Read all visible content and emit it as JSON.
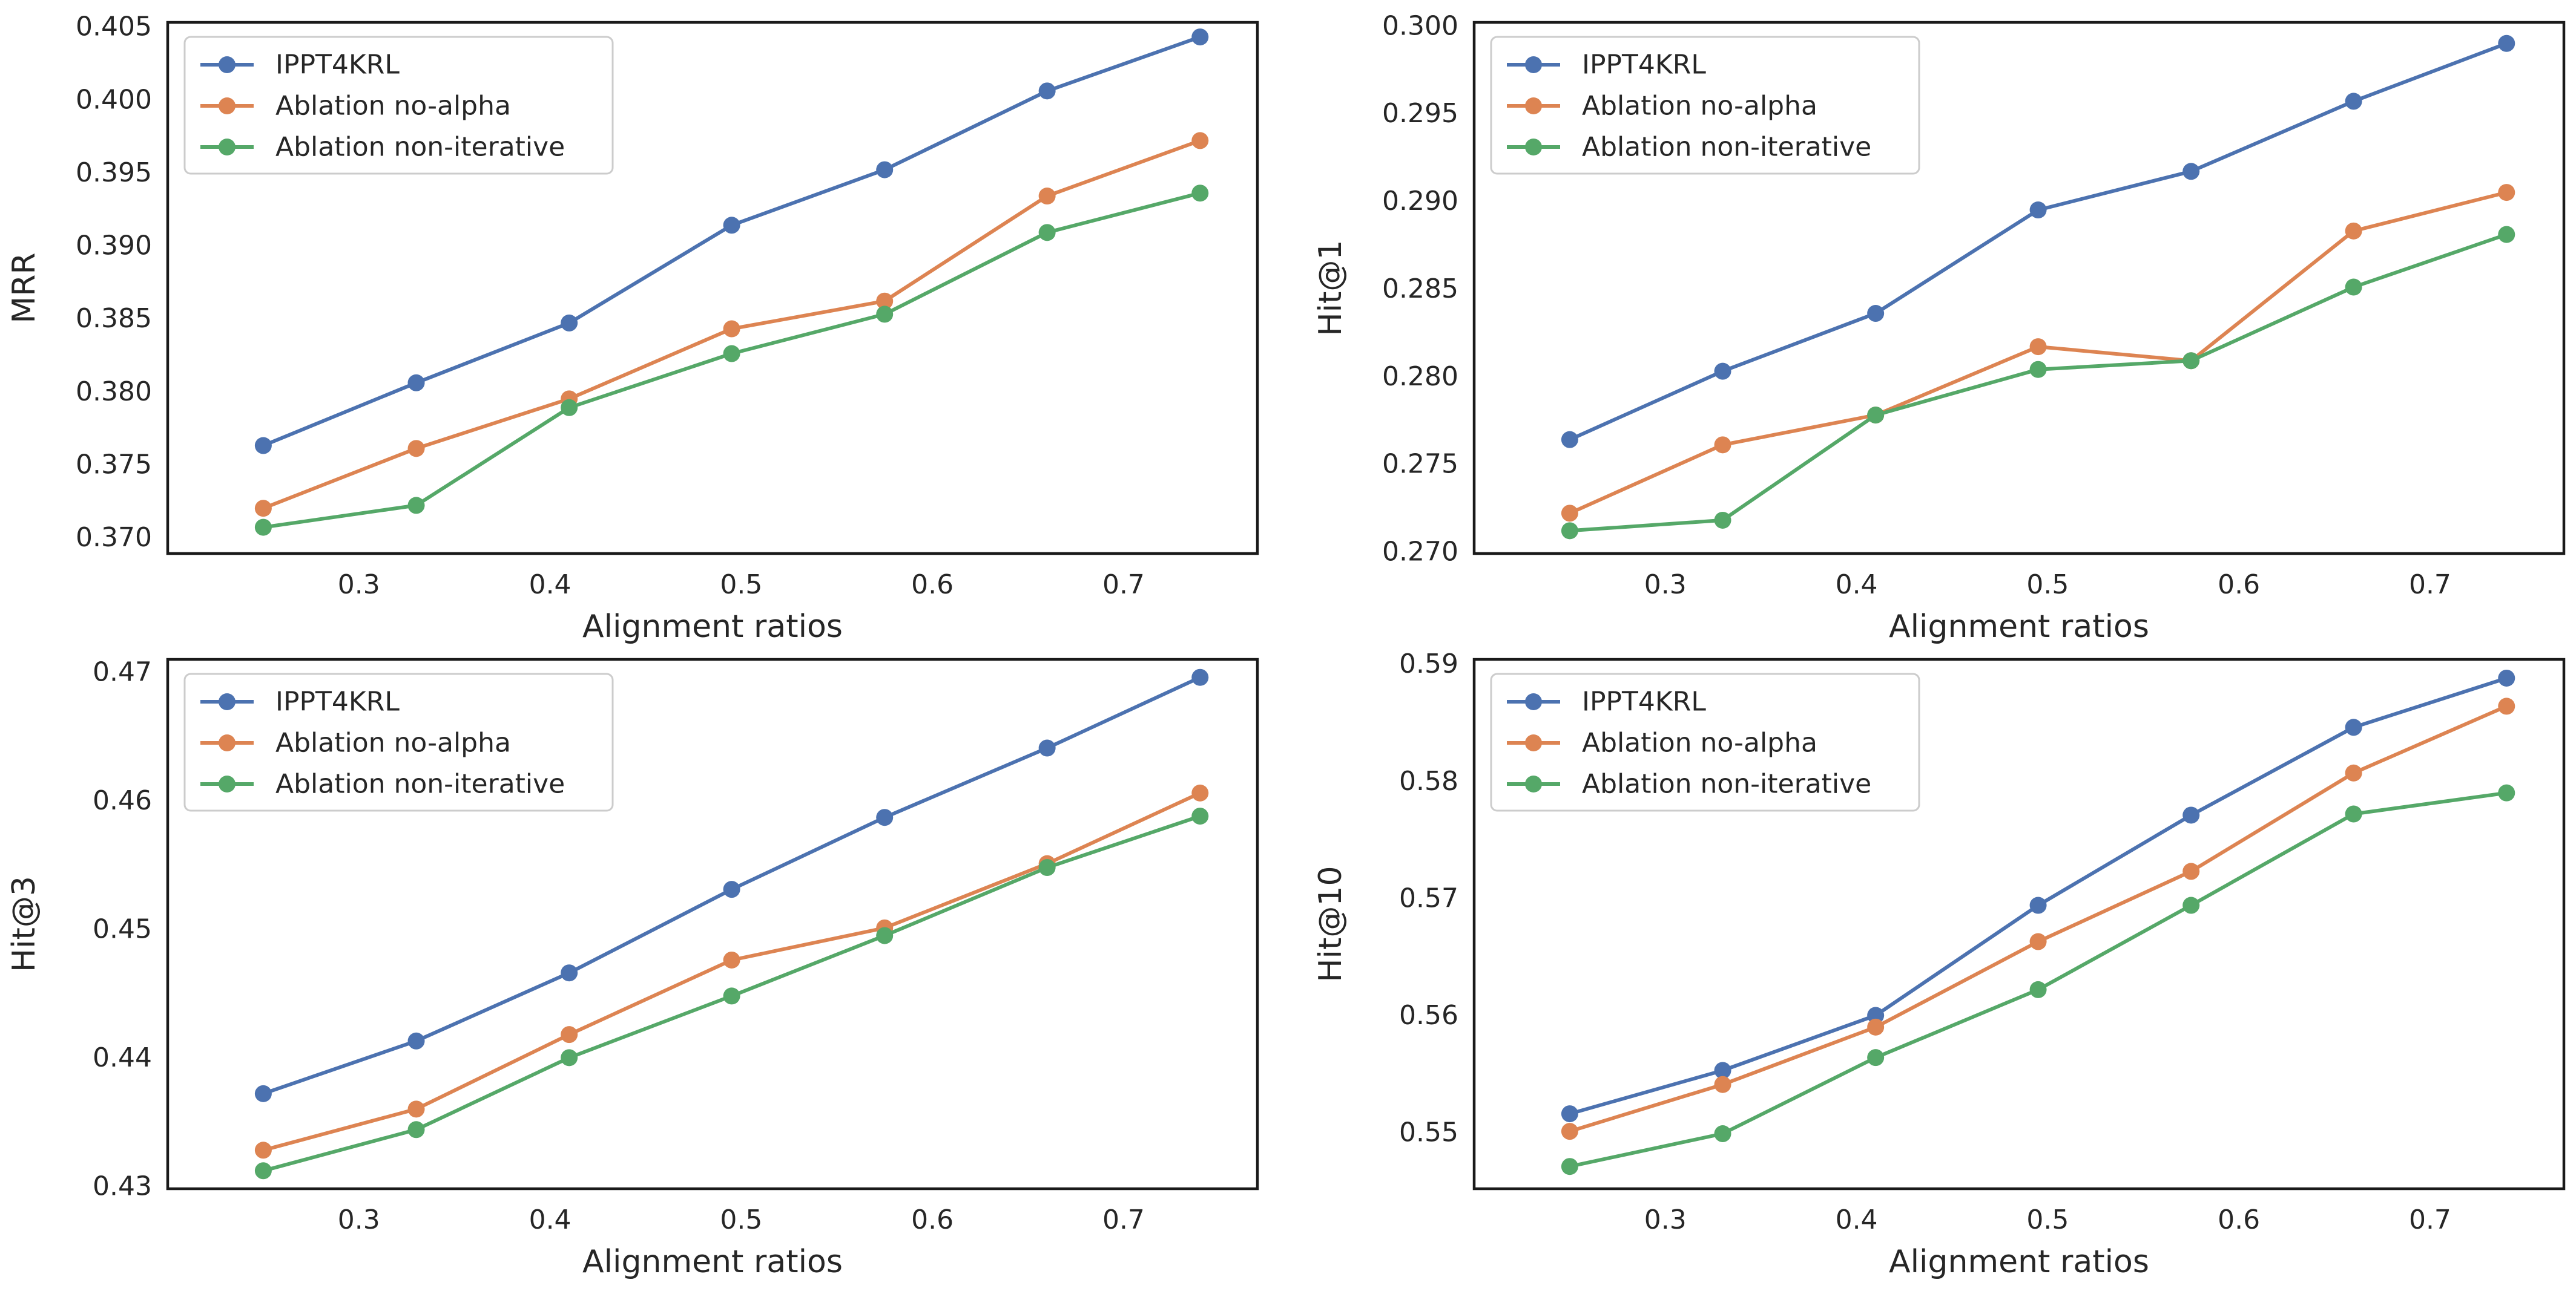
{
  "figure": {
    "background": "#ffffff"
  },
  "series_styles": [
    {
      "name": "IPPT4KRL",
      "color": "#4c72b0"
    },
    {
      "name": "Ablation no-alpha",
      "color": "#dd8452"
    },
    {
      "name": "Ablation non-iterative",
      "color": "#55a868"
    }
  ],
  "chart_data": [
    {
      "type": "line",
      "xlabel": "Alignment ratios",
      "ylabel": "MRR",
      "x": [
        0.25,
        0.33,
        0.41,
        0.495,
        0.575,
        0.66,
        0.74
      ],
      "xlim": [
        0.2,
        0.77
      ],
      "ylim": [
        0.3689,
        0.4053
      ],
      "xticks": [
        0.3,
        0.4,
        0.5,
        0.6,
        0.7
      ],
      "xtick_labels": [
        "0.3",
        "0.4",
        "0.5",
        "0.6",
        "0.7"
      ],
      "yticks": [
        0.37,
        0.375,
        0.38,
        0.385,
        0.39,
        0.395,
        0.4,
        0.405
      ],
      "ytick_labels": [
        "0.370",
        "0.375",
        "0.380",
        "0.385",
        "0.390",
        "0.395",
        "0.400",
        "0.405"
      ],
      "legend_position": "upper-left",
      "series": [
        {
          "name": "IPPT4KRL",
          "values": [
            0.3763,
            0.3806,
            0.3847,
            0.3914,
            0.3952,
            0.4006,
            0.4043
          ]
        },
        {
          "name": "Ablation no-alpha",
          "values": [
            0.372,
            0.3761,
            0.3795,
            0.3843,
            0.3862,
            0.3934,
            0.3972
          ]
        },
        {
          "name": "Ablation non-iterative",
          "values": [
            0.3707,
            0.3722,
            0.3789,
            0.3826,
            0.3853,
            0.3909,
            0.3936
          ]
        }
      ]
    },
    {
      "type": "line",
      "xlabel": "Alignment ratios",
      "ylabel": "Hit@1",
      "x": [
        0.25,
        0.33,
        0.41,
        0.495,
        0.575,
        0.66,
        0.74
      ],
      "xlim": [
        0.2,
        0.77
      ],
      "ylim": [
        0.2699,
        0.3002
      ],
      "xticks": [
        0.3,
        0.4,
        0.5,
        0.6,
        0.7
      ],
      "xtick_labels": [
        "0.3",
        "0.4",
        "0.5",
        "0.6",
        "0.7"
      ],
      "yticks": [
        0.27,
        0.275,
        0.28,
        0.285,
        0.29,
        0.295,
        0.3
      ],
      "ytick_labels": [
        "0.270",
        "0.275",
        "0.280",
        "0.285",
        "0.290",
        "0.295",
        "0.300"
      ],
      "legend_position": "upper-left",
      "series": [
        {
          "name": "IPPT4KRL",
          "values": [
            0.2764,
            0.2803,
            0.2836,
            0.2895,
            0.2917,
            0.2957,
            0.299
          ]
        },
        {
          "name": "Ablation no-alpha",
          "values": [
            0.2722,
            0.2761,
            0.2778,
            0.2817,
            0.2809,
            0.2883,
            0.2905
          ]
        },
        {
          "name": "Ablation non-iterative",
          "values": [
            0.2712,
            0.2718,
            0.2778,
            0.2804,
            0.2809,
            0.2851,
            0.2881
          ]
        }
      ]
    },
    {
      "type": "line",
      "xlabel": "Alignment ratios",
      "ylabel": "Hit@3",
      "x": [
        0.25,
        0.33,
        0.41,
        0.495,
        0.575,
        0.66,
        0.74
      ],
      "xlim": [
        0.2,
        0.77
      ],
      "ylim": [
        0.4298,
        0.471
      ],
      "xticks": [
        0.3,
        0.4,
        0.5,
        0.6,
        0.7
      ],
      "xtick_labels": [
        "0.3",
        "0.4",
        "0.5",
        "0.6",
        "0.7"
      ],
      "yticks": [
        0.43,
        0.44,
        0.45,
        0.46,
        0.47
      ],
      "ytick_labels": [
        "0.43",
        "0.44",
        "0.45",
        "0.46",
        "0.47"
      ],
      "legend_position": "upper-left",
      "series": [
        {
          "name": "IPPT4KRL",
          "values": [
            0.4372,
            0.4413,
            0.4466,
            0.4531,
            0.4587,
            0.4641,
            0.4696
          ]
        },
        {
          "name": "Ablation no-alpha",
          "values": [
            0.4328,
            0.436,
            0.4418,
            0.4476,
            0.4501,
            0.4551,
            0.4606
          ]
        },
        {
          "name": "Ablation non-iterative",
          "values": [
            0.4312,
            0.4344,
            0.44,
            0.4448,
            0.4495,
            0.4548,
            0.4588
          ]
        }
      ]
    },
    {
      "type": "line",
      "xlabel": "Alignment ratios",
      "ylabel": "Hit@10",
      "x": [
        0.25,
        0.33,
        0.41,
        0.495,
        0.575,
        0.66,
        0.74
      ],
      "xlim": [
        0.2,
        0.77
      ],
      "ylim": [
        0.5452,
        0.5904
      ],
      "xticks": [
        0.3,
        0.4,
        0.5,
        0.6,
        0.7
      ],
      "xtick_labels": [
        "0.3",
        "0.4",
        "0.5",
        "0.6",
        "0.7"
      ],
      "yticks": [
        0.55,
        0.56,
        0.57,
        0.58,
        0.59
      ],
      "ytick_labels": [
        "0.55",
        "0.56",
        "0.57",
        "0.58",
        "0.59"
      ],
      "legend_position": "upper-left",
      "series": [
        {
          "name": "IPPT4KRL",
          "values": [
            0.5516,
            0.5553,
            0.56,
            0.5694,
            0.5771,
            0.5846,
            0.5888
          ]
        },
        {
          "name": "Ablation no-alpha",
          "values": [
            0.5501,
            0.5541,
            0.559,
            0.5663,
            0.5723,
            0.5807,
            0.5864
          ]
        },
        {
          "name": "Ablation non-iterative",
          "values": [
            0.5471,
            0.5499,
            0.5564,
            0.5622,
            0.5694,
            0.5772,
            0.579
          ]
        }
      ]
    }
  ]
}
